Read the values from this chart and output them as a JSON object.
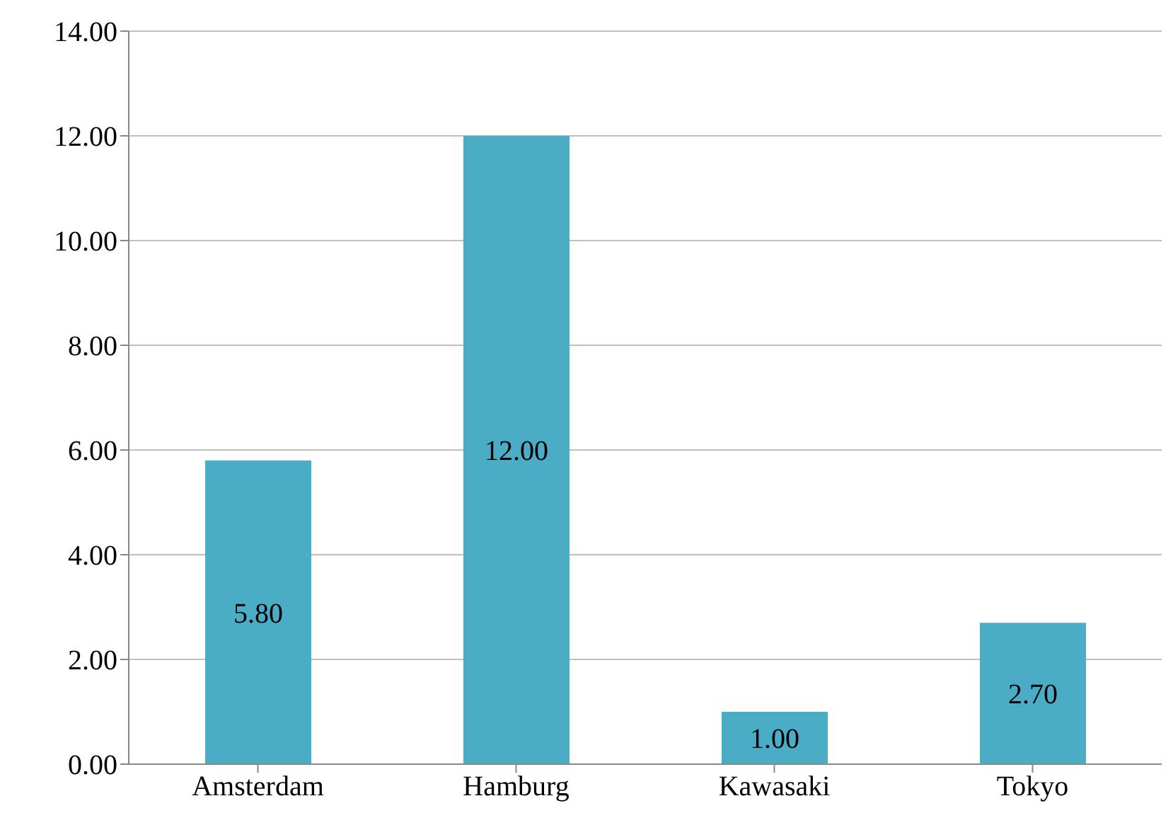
{
  "chart_data": {
    "type": "bar",
    "categories": [
      "Amsterdam",
      "Hamburg",
      "Kawasaki",
      "Tokyo"
    ],
    "values": [
      5.8,
      12.0,
      1.0,
      2.7
    ],
    "color": "#4bacc6",
    "value_labels": [
      "5.80",
      "12.00",
      "1.00",
      "2.70"
    ],
    "ylim": [
      0,
      14
    ],
    "yticks": [
      {
        "value": 0,
        "label": "0.00"
      },
      {
        "value": 2,
        "label": "2.00"
      },
      {
        "value": 4,
        "label": "4.00"
      },
      {
        "value": 6,
        "label": "6.00"
      },
      {
        "value": 8,
        "label": "8.00"
      },
      {
        "value": 10,
        "label": "10.00"
      },
      {
        "value": 12,
        "label": "12.00"
      },
      {
        "value": 14,
        "label": "14.00"
      }
    ],
    "grid": "y",
    "legend": false
  }
}
